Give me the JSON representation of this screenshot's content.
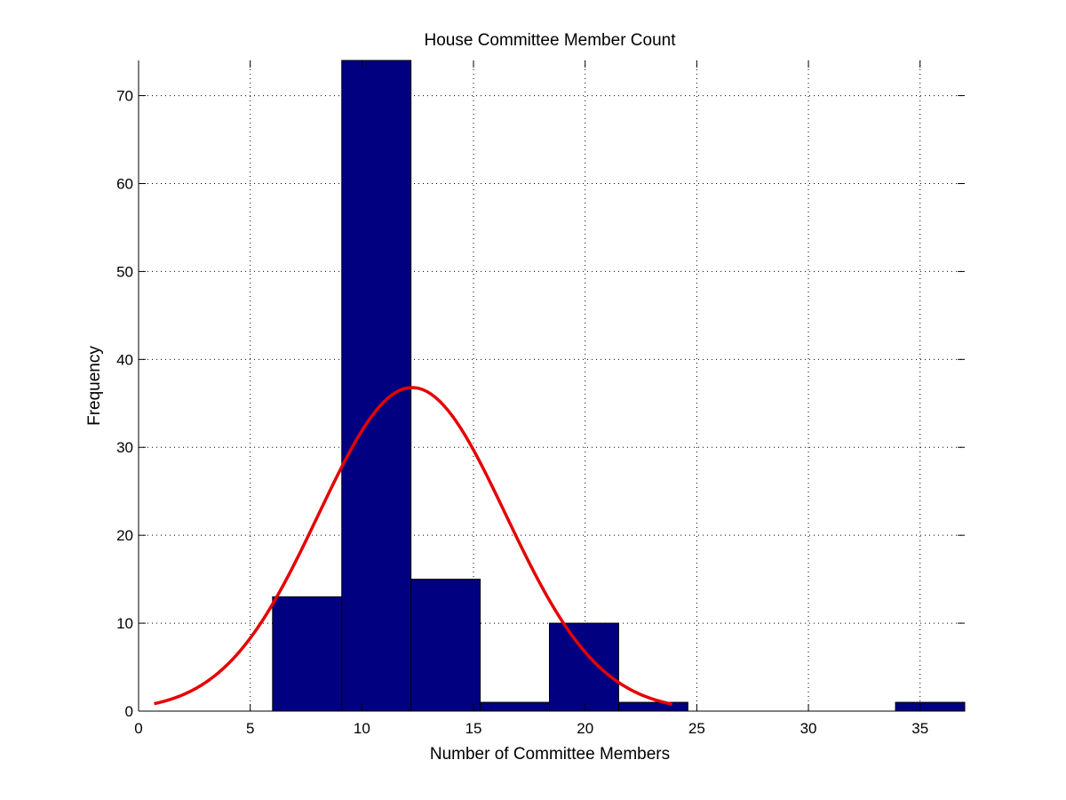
{
  "chart_data": {
    "type": "bar",
    "title": "House Committee Member Count",
    "xlabel": "Number of Committee Members",
    "ylabel": "Frequency",
    "xlim": [
      0,
      37
    ],
    "ylim": [
      0,
      74
    ],
    "xticks": [
      0,
      5,
      10,
      15,
      20,
      25,
      30,
      35
    ],
    "yticks": [
      0,
      10,
      20,
      30,
      40,
      50,
      60,
      70
    ],
    "grid": true,
    "bins": [
      {
        "x0": 6.0,
        "x1": 9.1,
        "value": 13
      },
      {
        "x0": 9.1,
        "x1": 12.2,
        "value": 74
      },
      {
        "x0": 12.2,
        "x1": 15.3,
        "value": 15
      },
      {
        "x0": 15.3,
        "x1": 18.4,
        "value": 1
      },
      {
        "x0": 18.4,
        "x1": 21.5,
        "value": 10
      },
      {
        "x0": 21.5,
        "x1": 24.6,
        "value": 1
      },
      {
        "x0": 24.6,
        "x1": 27.7,
        "value": 0
      },
      {
        "x0": 27.7,
        "x1": 30.8,
        "value": 0
      },
      {
        "x0": 30.8,
        "x1": 33.9,
        "value": 0
      },
      {
        "x0": 33.9,
        "x1": 37.0,
        "value": 1
      }
    ],
    "fit_curve": {
      "type": "normal",
      "mean": 12.25,
      "sd": 4.2,
      "peak": 36.8,
      "x_range": [
        0.7,
        23.9
      ]
    },
    "colors": {
      "bar_fill": "#000080",
      "bar_edge": "#000000",
      "curve": "#e60000",
      "grid": "#000000"
    }
  }
}
